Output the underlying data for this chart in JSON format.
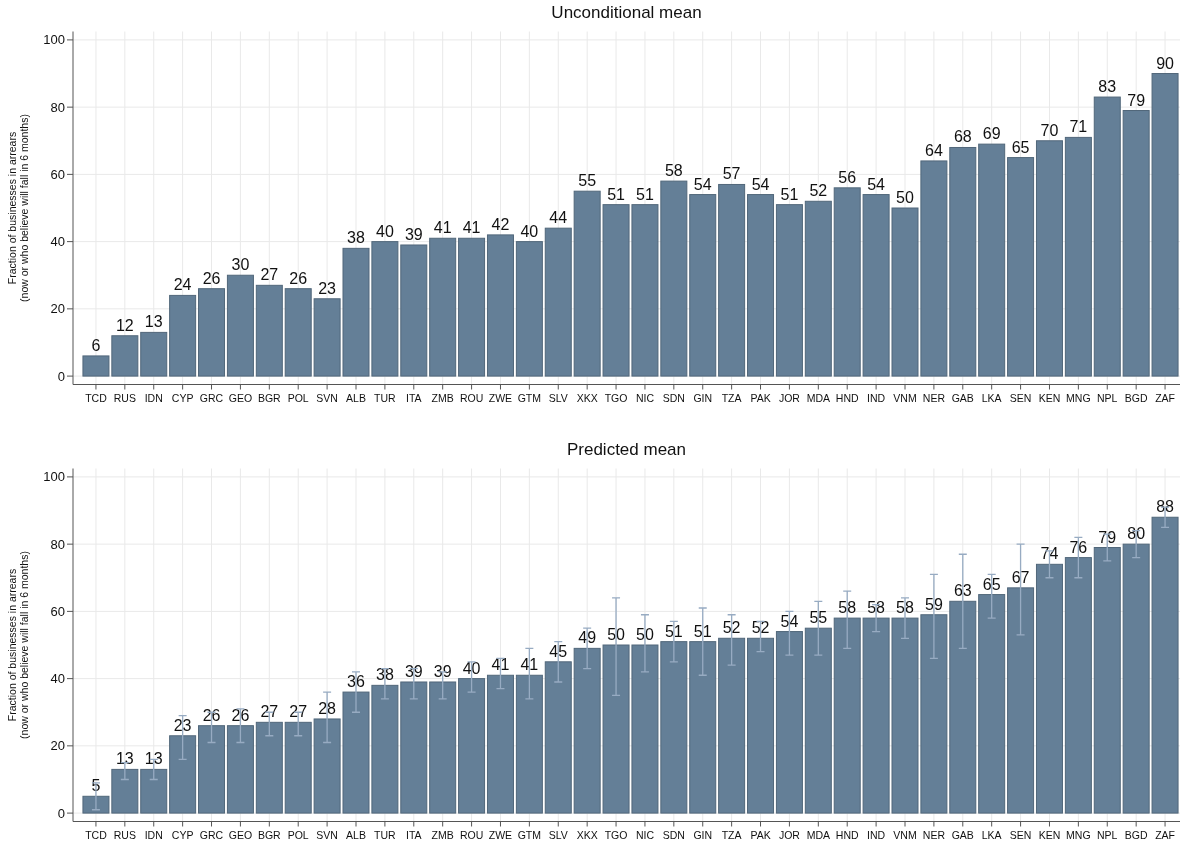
{
  "chart_data": [
    {
      "type": "bar",
      "title": "Unconditional mean",
      "ylabel": "Fraction of businesses in arrears\n(now or who believe will fall in 6 months)",
      "categories": [
        "TCD",
        "RUS",
        "IDN",
        "CYP",
        "GRC",
        "GEO",
        "BGR",
        "POL",
        "SVN",
        "ALB",
        "TUR",
        "ITA",
        "ZMB",
        "ROU",
        "ZWE",
        "GTM",
        "SLV",
        "XKX",
        "TGO",
        "NIC",
        "SDN",
        "GIN",
        "TZA",
        "PAK",
        "JOR",
        "MDA",
        "HND",
        "IND",
        "VNM",
        "NER",
        "GAB",
        "LKA",
        "SEN",
        "KEN",
        "MNG",
        "NPL",
        "BGD",
        "ZAF"
      ],
      "values": [
        6,
        12,
        13,
        24,
        26,
        30,
        27,
        26,
        23,
        38,
        40,
        39,
        41,
        41,
        42,
        40,
        44,
        55,
        51,
        51,
        58,
        54,
        57,
        54,
        51,
        52,
        56,
        54,
        50,
        64,
        68,
        69,
        65,
        70,
        71,
        83,
        79,
        90
      ],
      "color": "#647f97",
      "ylim": [
        -2.5,
        102.5
      ],
      "yticks": [
        0,
        20,
        40,
        60,
        80,
        100
      ],
      "grid": true,
      "data_labels": true
    },
    {
      "type": "bar",
      "title": "Predicted mean",
      "ylabel": "Fraction of businesses in arrears\n(now or who believe will fall in 6 months)",
      "categories": [
        "TCD",
        "RUS",
        "IDN",
        "CYP",
        "GRC",
        "GEO",
        "BGR",
        "POL",
        "SVN",
        "ALB",
        "TUR",
        "ITA",
        "ZMB",
        "ROU",
        "ZWE",
        "GTM",
        "SLV",
        "XKX",
        "TGO",
        "NIC",
        "SDN",
        "GIN",
        "TZA",
        "PAK",
        "JOR",
        "MDA",
        "HND",
        "IND",
        "VNM",
        "NER",
        "GAB",
        "LKA",
        "SEN",
        "KEN",
        "MNG",
        "NPL",
        "BGD",
        "ZAF"
      ],
      "values": [
        5,
        13,
        13,
        23,
        26,
        26,
        27,
        27,
        28,
        36,
        38,
        39,
        39,
        40,
        41,
        41,
        45,
        49,
        50,
        50,
        51,
        51,
        52,
        52,
        54,
        55,
        58,
        58,
        58,
        59,
        63,
        65,
        67,
        74,
        76,
        79,
        80,
        88
      ],
      "errors": [
        [
          1,
          9
        ],
        [
          10,
          15
        ],
        [
          10,
          16
        ],
        [
          16,
          29
        ],
        [
          21,
          30
        ],
        [
          21,
          31
        ],
        [
          23,
          30
        ],
        [
          23,
          30
        ],
        [
          21,
          36
        ],
        [
          30,
          42
        ],
        [
          34,
          43
        ],
        [
          34,
          43
        ],
        [
          34,
          42
        ],
        [
          36,
          45
        ],
        [
          37,
          46
        ],
        [
          34,
          49
        ],
        [
          39,
          51
        ],
        [
          43,
          55
        ],
        [
          35,
          64
        ],
        [
          42,
          59
        ],
        [
          45,
          57
        ],
        [
          41,
          61
        ],
        [
          44,
          59
        ],
        [
          48,
          57
        ],
        [
          47,
          60
        ],
        [
          47,
          63
        ],
        [
          49,
          66
        ],
        [
          54,
          62
        ],
        [
          52,
          64
        ],
        [
          46,
          71
        ],
        [
          49,
          77
        ],
        [
          58,
          71
        ],
        [
          53,
          80
        ],
        [
          70,
          78
        ],
        [
          70,
          82
        ],
        [
          75,
          83
        ],
        [
          76,
          84
        ],
        [
          85,
          91
        ]
      ],
      "color": "#647f97",
      "ylim": [
        -2.5,
        102.5
      ],
      "yticks": [
        0,
        20,
        40,
        60,
        80,
        100
      ],
      "grid": true,
      "data_labels": true
    }
  ]
}
